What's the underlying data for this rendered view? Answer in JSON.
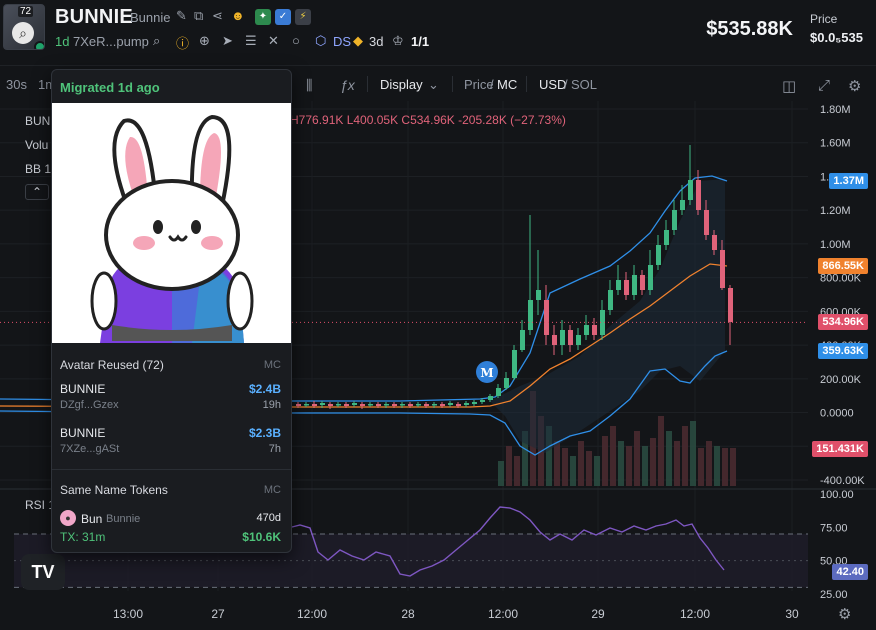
{
  "header": {
    "avatar_count": "72",
    "symbol": "BUNNIE",
    "name": "Bunnie",
    "age": "1d",
    "address": "7XeR...pump",
    "ds_label": "DS",
    "timeframe": "3d",
    "ratio": "1/1",
    "market_cap": "$535.88K",
    "price_label": "Price",
    "price_value": "$0.0₅535"
  },
  "toolbar": {
    "interval_30s": "30s",
    "interval_1m": "1m",
    "display": "Display",
    "price": "Price",
    "mc": "MC",
    "usd": "USD",
    "sol": "SOL"
  },
  "legend": {
    "symbol": "BUN",
    "volume": "Volu",
    "bb": "BB 1",
    "rsi": "RSI 1",
    "ohlc": "H776.91K  L400.05K  C534.96K  -205.28K (−27.73%)"
  },
  "popover": {
    "status": "Migrated 1d ago",
    "avatar_section": "Avatar Reused (72)",
    "mc_header": "MC",
    "reused": [
      {
        "name": "BUNNIE",
        "address": "DZgf...Gzex",
        "mc": "$2.4B",
        "age": "19h"
      },
      {
        "name": "BUNNIE",
        "address": "7XZe...gASt",
        "mc": "$2.3B",
        "age": "7h"
      }
    ],
    "same_name_section": "Same Name Tokens",
    "same_name": {
      "symbol": "Bun",
      "name": "Bunnie",
      "age": "470d",
      "tx": "TX: 31m",
      "mc": "$10.6K"
    }
  },
  "price_axis": {
    "labels": [
      "1.80M",
      "1.60M",
      "1.40M",
      "1.20M",
      "1.00M",
      "800.00K",
      "600.00K",
      "400.00K",
      "200.00K",
      "0.0000",
      "-200.00K",
      "-400.00K"
    ],
    "tags": {
      "upper": "1.37M",
      "middle": "866.55K",
      "last": "534.96K",
      "lower": "359.63K",
      "volume": "151.431K",
      "rsi": "42.40"
    }
  },
  "rsi_axis": {
    "labels": [
      "100.00",
      "75.00",
      "50.00",
      "25.00"
    ]
  },
  "time_axis": {
    "labels": [
      "13:00",
      "27",
      "12:00",
      "28",
      "12:00",
      "29",
      "12:00",
      "30"
    ]
  },
  "marker": "M",
  "colors": {
    "up": "#26a69a",
    "down": "#ef5350",
    "bb_upper": "#2f8fe8",
    "bb_middle": "#f0822e",
    "rsi": "#7e57c2",
    "last_price": "#e0506a"
  },
  "chart_data": {
    "type": "candlestick",
    "x": [
      "26 13:00",
      "27",
      "27 12:00",
      "28",
      "28 12:00",
      "29",
      "29 12:00",
      "30"
    ],
    "ylim": [
      -400000,
      1800000
    ],
    "rsi_ylim": [
      25,
      100
    ],
    "last_close": 534960,
    "upper_band": 1370000,
    "middle_band": 866550,
    "lower_band": 359630,
    "last_volume": 151431,
    "last_rsi": 42.4
  }
}
